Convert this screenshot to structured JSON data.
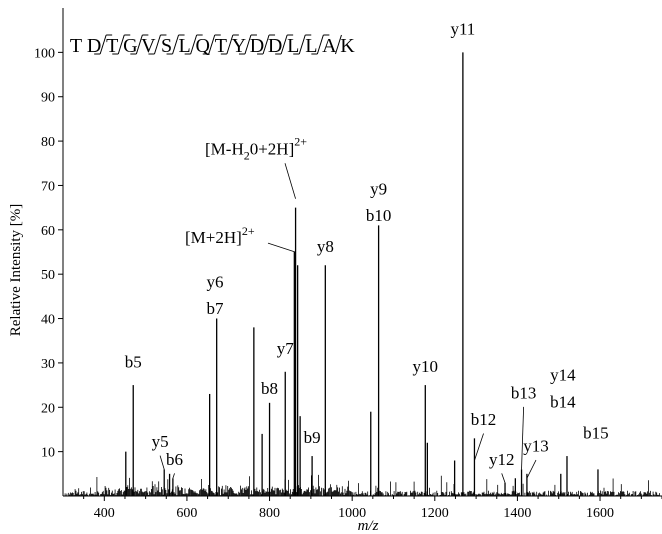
{
  "chart_data": {
    "type": "bar",
    "xlabel": "m/z",
    "ylabel": "Relative Intensity [%]",
    "xlim": [
      300,
      1750
    ],
    "ylim": [
      0,
      110
    ],
    "x_ticks": [
      400,
      600,
      800,
      1000,
      1200,
      1400,
      1600
    ],
    "y_ticks": [
      10,
      20,
      30,
      40,
      50,
      60,
      70,
      80,
      90,
      100
    ],
    "sequence": [
      "T",
      "D",
      "T",
      "G",
      "V",
      "S",
      "L",
      "Q",
      "T",
      "Y",
      "D",
      "D",
      "L",
      "L",
      "A",
      "K"
    ],
    "peaks": [
      {
        "mz": 470,
        "intensity": 25
      },
      {
        "mz": 452,
        "intensity": 10
      },
      {
        "mz": 545,
        "intensity": 6
      },
      {
        "mz": 558,
        "intensity": 5
      },
      {
        "mz": 566,
        "intensity": 4
      },
      {
        "mz": 655,
        "intensity": 23
      },
      {
        "mz": 672,
        "intensity": 40
      },
      {
        "mz": 762,
        "intensity": 38
      },
      {
        "mz": 782,
        "intensity": 14
      },
      {
        "mz": 800,
        "intensity": 21
      },
      {
        "mz": 838,
        "intensity": 28
      },
      {
        "mz": 860,
        "intensity": 55
      },
      {
        "mz": 863,
        "intensity": 65
      },
      {
        "mz": 868,
        "intensity": 52
      },
      {
        "mz": 874,
        "intensity": 18
      },
      {
        "mz": 903,
        "intensity": 9
      },
      {
        "mz": 935,
        "intensity": 52
      },
      {
        "mz": 1045,
        "intensity": 19
      },
      {
        "mz": 1064,
        "intensity": 61
      },
      {
        "mz": 1177,
        "intensity": 25
      },
      {
        "mz": 1182,
        "intensity": 12
      },
      {
        "mz": 1248,
        "intensity": 8
      },
      {
        "mz": 1268,
        "intensity": 100
      },
      {
        "mz": 1296,
        "intensity": 13
      },
      {
        "mz": 1370,
        "intensity": 3
      },
      {
        "mz": 1395,
        "intensity": 4
      },
      {
        "mz": 1410,
        "intensity": 6
      },
      {
        "mz": 1423,
        "intensity": 5
      },
      {
        "mz": 1505,
        "intensity": 5
      },
      {
        "mz": 1520,
        "intensity": 9
      },
      {
        "mz": 1595,
        "intensity": 6
      }
    ],
    "annotations": [
      {
        "text": "b5",
        "mz": 470,
        "ly": 29
      },
      {
        "text": "y5",
        "mz": 535,
        "ly": 11
      },
      {
        "text": "b6",
        "mz": 570,
        "ly": 7
      },
      {
        "text": "y6",
        "mz": 668,
        "ly": 47
      },
      {
        "text": "b7",
        "mz": 668,
        "ly": 41
      },
      {
        "text": "y7",
        "mz": 838,
        "ly": 32
      },
      {
        "text": "b8",
        "mz": 800,
        "ly": 23
      },
      {
        "text": "b9",
        "mz": 903,
        "ly": 12
      },
      {
        "text": "y8",
        "mz": 935,
        "ly": 55
      },
      {
        "text": "y9",
        "mz": 1064,
        "ly": 68
      },
      {
        "text": "b10",
        "mz": 1064,
        "ly": 62
      },
      {
        "text": "y10",
        "mz": 1177,
        "ly": 28
      },
      {
        "text": "y11",
        "mz": 1268,
        "ly": 104
      },
      {
        "text": "b12",
        "mz": 1318,
        "ly": 16
      },
      {
        "text": "y12",
        "mz": 1362,
        "ly": 7
      },
      {
        "text": "b13",
        "mz": 1415,
        "ly": 22
      },
      {
        "text": "y13",
        "mz": 1445,
        "ly": 10
      },
      {
        "text": "y14",
        "mz": 1510,
        "ly": 26
      },
      {
        "text": "b14",
        "mz": 1510,
        "ly": 20
      },
      {
        "text": "b15",
        "mz": 1590,
        "ly": 13
      }
    ],
    "precursor_labels": [
      {
        "base": "[M+2H]",
        "sup": "2+",
        "target_mz": 862,
        "target_y": 55
      },
      {
        "base": "[M-H",
        "sub": "2",
        "rest": "0+2H]",
        "sup": "2+",
        "target_mz": 863,
        "target_y": 67
      }
    ]
  }
}
